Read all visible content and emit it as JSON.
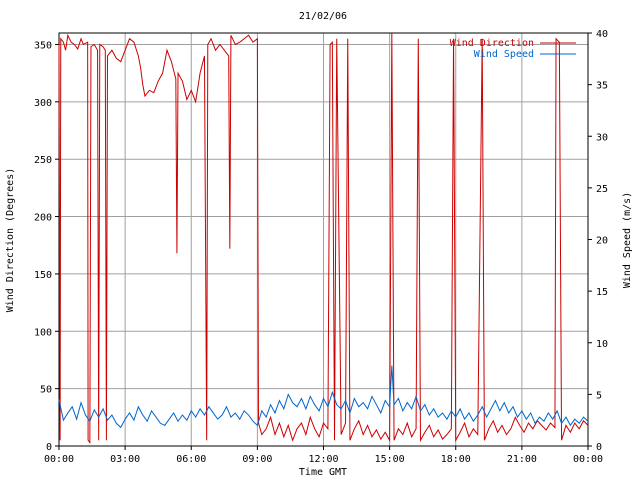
{
  "chart_data": {
    "type": "line",
    "title": "21/02/06",
    "xlabel": "Time GMT",
    "ylabel_left": "Wind Direction (Degrees)",
    "ylabel_right": "Wind Speed (m/s)",
    "x_ticks": [
      "00:00",
      "03:00",
      "06:00",
      "09:00",
      "12:00",
      "15:00",
      "18:00",
      "21:00",
      "00:00"
    ],
    "x_range_hours": [
      0,
      24
    ],
    "y_left_ticks": [
      0,
      50,
      100,
      150,
      200,
      250,
      300,
      350
    ],
    "y_left_range": [
      0,
      360
    ],
    "y_right_ticks": [
      0,
      5,
      10,
      15,
      20,
      25,
      30,
      35,
      40
    ],
    "y_right_range": [
      0,
      40
    ],
    "grid": true,
    "legend_position": "top-right",
    "colors": {
      "direction": "#cc0000",
      "speed": "#0066cc",
      "grid": "#a0a0a0"
    },
    "series": [
      {
        "name": "Wind Direction",
        "axis": "left",
        "color": "#cc0000",
        "points": [
          [
            0.0,
            350
          ],
          [
            0.05,
            5
          ],
          [
            0.08,
            355
          ],
          [
            0.2,
            352
          ],
          [
            0.3,
            345
          ],
          [
            0.4,
            358
          ],
          [
            0.55,
            352
          ],
          [
            0.7,
            350
          ],
          [
            0.85,
            346
          ],
          [
            1.0,
            355
          ],
          [
            1.1,
            350
          ],
          [
            1.3,
            352
          ],
          [
            1.32,
            5
          ],
          [
            1.4,
            3
          ],
          [
            1.45,
            348
          ],
          [
            1.6,
            350
          ],
          [
            1.75,
            345
          ],
          [
            1.8,
            5
          ],
          [
            1.85,
            350
          ],
          [
            2.0,
            348
          ],
          [
            2.1,
            345
          ],
          [
            2.15,
            5
          ],
          [
            2.2,
            340
          ],
          [
            2.4,
            345
          ],
          [
            2.6,
            338
          ],
          [
            2.8,
            335
          ],
          [
            3.0,
            345
          ],
          [
            3.2,
            355
          ],
          [
            3.4,
            352
          ],
          [
            3.6,
            340
          ],
          [
            3.7,
            330
          ],
          [
            3.8,
            315
          ],
          [
            3.9,
            305
          ],
          [
            4.1,
            310
          ],
          [
            4.3,
            308
          ],
          [
            4.5,
            318
          ],
          [
            4.7,
            325
          ],
          [
            4.9,
            345
          ],
          [
            5.1,
            335
          ],
          [
            5.3,
            320
          ],
          [
            5.35,
            168
          ],
          [
            5.4,
            325
          ],
          [
            5.6,
            318
          ],
          [
            5.8,
            302
          ],
          [
            6.0,
            310
          ],
          [
            6.2,
            300
          ],
          [
            6.4,
            325
          ],
          [
            6.6,
            340
          ],
          [
            6.7,
            5
          ],
          [
            6.75,
            350
          ],
          [
            6.9,
            355
          ],
          [
            7.1,
            345
          ],
          [
            7.3,
            350
          ],
          [
            7.5,
            345
          ],
          [
            7.7,
            340
          ],
          [
            7.75,
            172
          ],
          [
            7.8,
            358
          ],
          [
            8.0,
            350
          ],
          [
            8.2,
            352
          ],
          [
            8.4,
            355
          ],
          [
            8.6,
            358
          ],
          [
            8.8,
            352
          ],
          [
            9.0,
            355
          ],
          [
            9.05,
            20
          ],
          [
            9.2,
            10
          ],
          [
            9.4,
            15
          ],
          [
            9.6,
            25
          ],
          [
            9.8,
            10
          ],
          [
            10.0,
            20
          ],
          [
            10.2,
            8
          ],
          [
            10.4,
            18
          ],
          [
            10.6,
            5
          ],
          [
            10.8,
            15
          ],
          [
            11.0,
            20
          ],
          [
            11.2,
            10
          ],
          [
            11.4,
            25
          ],
          [
            11.6,
            15
          ],
          [
            11.8,
            8
          ],
          [
            12.0,
            20
          ],
          [
            12.2,
            15
          ],
          [
            12.3,
            350
          ],
          [
            12.4,
            352
          ],
          [
            12.5,
            5
          ],
          [
            12.6,
            355
          ],
          [
            12.8,
            10
          ],
          [
            13.0,
            20
          ],
          [
            13.1,
            355
          ],
          [
            13.2,
            5
          ],
          [
            13.4,
            15
          ],
          [
            13.6,
            22
          ],
          [
            13.8,
            10
          ],
          [
            14.0,
            18
          ],
          [
            14.2,
            8
          ],
          [
            14.4,
            14
          ],
          [
            14.6,
            6
          ],
          [
            14.8,
            12
          ],
          [
            15.0,
            5
          ],
          [
            15.1,
            360
          ],
          [
            15.2,
            5
          ],
          [
            15.4,
            15
          ],
          [
            15.6,
            10
          ],
          [
            15.8,
            20
          ],
          [
            16.0,
            8
          ],
          [
            16.2,
            15
          ],
          [
            16.3,
            355
          ],
          [
            16.4,
            5
          ],
          [
            16.6,
            12
          ],
          [
            16.8,
            18
          ],
          [
            17.0,
            8
          ],
          [
            17.2,
            14
          ],
          [
            17.4,
            6
          ],
          [
            17.6,
            10
          ],
          [
            17.8,
            15
          ],
          [
            17.9,
            355
          ],
          [
            18.0,
            5
          ],
          [
            18.2,
            12
          ],
          [
            18.4,
            20
          ],
          [
            18.6,
            8
          ],
          [
            18.8,
            15
          ],
          [
            19.0,
            10
          ],
          [
            19.2,
            355
          ],
          [
            19.3,
            5
          ],
          [
            19.5,
            15
          ],
          [
            19.7,
            22
          ],
          [
            19.9,
            12
          ],
          [
            20.1,
            18
          ],
          [
            20.3,
            10
          ],
          [
            20.5,
            15
          ],
          [
            20.7,
            25
          ],
          [
            20.9,
            18
          ],
          [
            21.1,
            12
          ],
          [
            21.3,
            20
          ],
          [
            21.5,
            15
          ],
          [
            21.7,
            22
          ],
          [
            21.9,
            18
          ],
          [
            22.1,
            14
          ],
          [
            22.3,
            20
          ],
          [
            22.5,
            16
          ],
          [
            22.55,
            355
          ],
          [
            22.7,
            352
          ],
          [
            22.8,
            5
          ],
          [
            23.0,
            18
          ],
          [
            23.2,
            12
          ],
          [
            23.4,
            20
          ],
          [
            23.6,
            15
          ],
          [
            23.8,
            22
          ],
          [
            24.0,
            18
          ]
        ]
      },
      {
        "name": "Wind Speed",
        "axis": "right",
        "color": "#0066cc",
        "points": [
          [
            0.0,
            4.5
          ],
          [
            0.2,
            2.5
          ],
          [
            0.4,
            3.2
          ],
          [
            0.6,
            3.8
          ],
          [
            0.8,
            2.6
          ],
          [
            1.0,
            4.2
          ],
          [
            1.2,
            3.0
          ],
          [
            1.4,
            2.4
          ],
          [
            1.6,
            3.5
          ],
          [
            1.8,
            2.8
          ],
          [
            2.0,
            3.6
          ],
          [
            2.2,
            2.5
          ],
          [
            2.4,
            3.0
          ],
          [
            2.6,
            2.2
          ],
          [
            2.8,
            1.8
          ],
          [
            3.0,
            2.6
          ],
          [
            3.2,
            3.2
          ],
          [
            3.4,
            2.5
          ],
          [
            3.6,
            3.8
          ],
          [
            3.8,
            3.0
          ],
          [
            4.0,
            2.4
          ],
          [
            4.2,
            3.4
          ],
          [
            4.4,
            2.8
          ],
          [
            4.6,
            2.2
          ],
          [
            4.8,
            2.0
          ],
          [
            5.0,
            2.6
          ],
          [
            5.2,
            3.2
          ],
          [
            5.4,
            2.4
          ],
          [
            5.6,
            3.0
          ],
          [
            5.8,
            2.5
          ],
          [
            6.0,
            3.4
          ],
          [
            6.2,
            2.8
          ],
          [
            6.4,
            3.6
          ],
          [
            6.6,
            3.0
          ],
          [
            6.8,
            3.8
          ],
          [
            7.0,
            3.2
          ],
          [
            7.2,
            2.6
          ],
          [
            7.4,
            3.0
          ],
          [
            7.6,
            3.8
          ],
          [
            7.8,
            2.8
          ],
          [
            8.0,
            3.2
          ],
          [
            8.2,
            2.6
          ],
          [
            8.4,
            3.4
          ],
          [
            8.6,
            3.0
          ],
          [
            8.8,
            2.4
          ],
          [
            9.0,
            2.0
          ],
          [
            9.2,
            3.4
          ],
          [
            9.4,
            2.8
          ],
          [
            9.6,
            4.0
          ],
          [
            9.8,
            3.2
          ],
          [
            10.0,
            4.4
          ],
          [
            10.2,
            3.6
          ],
          [
            10.4,
            5.0
          ],
          [
            10.6,
            4.2
          ],
          [
            10.8,
            3.8
          ],
          [
            11.0,
            4.6
          ],
          [
            11.2,
            3.6
          ],
          [
            11.4,
            4.8
          ],
          [
            11.6,
            4.0
          ],
          [
            11.8,
            3.4
          ],
          [
            12.0,
            4.6
          ],
          [
            12.2,
            3.8
          ],
          [
            12.4,
            5.2
          ],
          [
            12.6,
            4.0
          ],
          [
            12.8,
            3.6
          ],
          [
            13.0,
            4.4
          ],
          [
            13.2,
            3.2
          ],
          [
            13.4,
            4.6
          ],
          [
            13.6,
            3.8
          ],
          [
            13.8,
            4.2
          ],
          [
            14.0,
            3.6
          ],
          [
            14.2,
            4.8
          ],
          [
            14.4,
            4.0
          ],
          [
            14.6,
            3.2
          ],
          [
            14.8,
            4.4
          ],
          [
            15.0,
            3.8
          ],
          [
            15.1,
            7.8
          ],
          [
            15.2,
            4.0
          ],
          [
            15.4,
            4.6
          ],
          [
            15.6,
            3.4
          ],
          [
            15.8,
            4.2
          ],
          [
            16.0,
            3.6
          ],
          [
            16.2,
            4.8
          ],
          [
            16.4,
            3.4
          ],
          [
            16.6,
            4.0
          ],
          [
            16.8,
            3.0
          ],
          [
            17.0,
            3.6
          ],
          [
            17.2,
            2.8
          ],
          [
            17.4,
            3.2
          ],
          [
            17.6,
            2.6
          ],
          [
            17.8,
            3.4
          ],
          [
            18.0,
            2.8
          ],
          [
            18.2,
            3.6
          ],
          [
            18.4,
            2.6
          ],
          [
            18.6,
            3.2
          ],
          [
            18.8,
            2.4
          ],
          [
            19.0,
            3.0
          ],
          [
            19.2,
            3.8
          ],
          [
            19.4,
            2.8
          ],
          [
            19.6,
            3.6
          ],
          [
            19.8,
            4.4
          ],
          [
            20.0,
            3.4
          ],
          [
            20.2,
            4.2
          ],
          [
            20.4,
            3.2
          ],
          [
            20.6,
            3.8
          ],
          [
            20.8,
            2.8
          ],
          [
            21.0,
            3.4
          ],
          [
            21.2,
            2.6
          ],
          [
            21.4,
            3.2
          ],
          [
            21.6,
            2.2
          ],
          [
            21.8,
            2.8
          ],
          [
            22.0,
            2.4
          ],
          [
            22.2,
            3.2
          ],
          [
            22.4,
            2.6
          ],
          [
            22.6,
            3.4
          ],
          [
            22.8,
            2.2
          ],
          [
            23.0,
            2.8
          ],
          [
            23.2,
            2.0
          ],
          [
            23.4,
            2.6
          ],
          [
            23.6,
            2.2
          ],
          [
            23.8,
            2.8
          ],
          [
            24.0,
            2.4
          ]
        ]
      }
    ]
  }
}
